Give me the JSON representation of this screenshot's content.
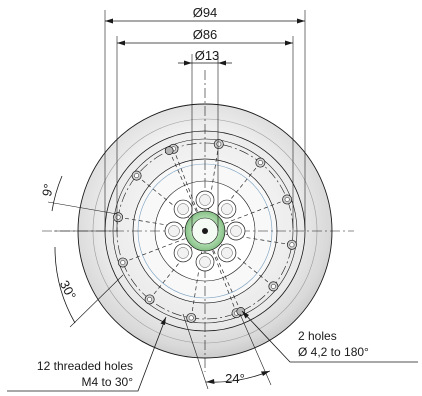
{
  "dimensions": {
    "outer_diameter": "Ø94",
    "bolt_circle_diameter": "Ø86",
    "center_bore_diameter": "Ø13",
    "angle_top_left": "9°",
    "angle_left": "30°",
    "angle_bottom": "24°"
  },
  "callouts": {
    "threaded_line1": "12 threaded holes",
    "threaded_line2": "M4 to 30°",
    "pin_line1": "2 holes",
    "pin_line2": "Ø 4,2 to 180°"
  },
  "colors": {
    "line": "#1a1a1a",
    "flange_light": "#f7f7f7",
    "flange_dark": "#c8c8c8",
    "bore_green": "#8fc98f"
  }
}
